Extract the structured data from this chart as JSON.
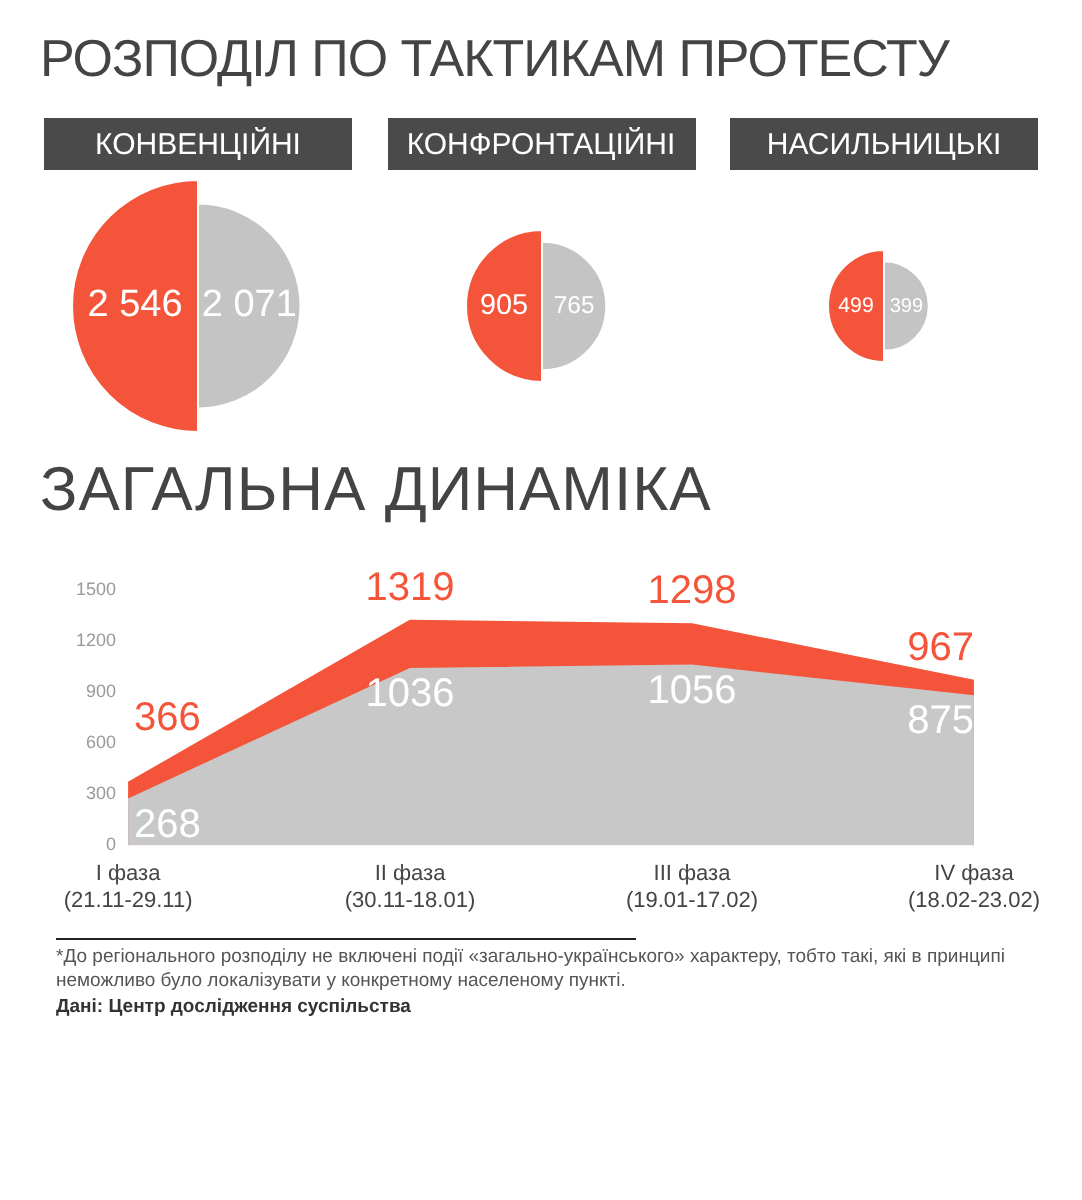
{
  "chart_data": [
    {
      "type": "other",
      "title": "РОЗПОДІЛ ПО ТАКТИКАМ ПРОТЕСТУ",
      "categories": [
        "КОНВЕНЦІЙНІ",
        "КОНФРОНТАЦІЙНІ",
        "НАСИЛЬНИЦЬКІ"
      ],
      "series": [
        {
          "color": "#f4553a",
          "values": [
            2546,
            905,
            499
          ],
          "value_labels": [
            "2 546",
            "905",
            "499"
          ]
        },
        {
          "color": "#c4c4c4",
          "values": [
            2071,
            765,
            399
          ],
          "value_labels": [
            "2 071",
            "765",
            "399"
          ]
        }
      ]
    },
    {
      "type": "area",
      "title": "ЗАГАЛЬНА ДИНАМІКА",
      "categories": [
        "I фаза\n(21.11-29.11)",
        "II фаза\n(30.11-18.01)",
        "III фаза\n(19.01-17.02)",
        "IV фаза\n(18.02-23.02)"
      ],
      "series": [
        {
          "color": "#f4553a",
          "values": [
            366,
            1319,
            1298,
            967
          ]
        },
        {
          "color": "#c8c8c8",
          "values": [
            268,
            1036,
            1056,
            875
          ]
        }
      ],
      "ylim": [
        0,
        1500
      ],
      "yticks": [
        0,
        300,
        600,
        900,
        1200,
        1500
      ],
      "grid": false,
      "legend": false,
      "data_labels": true,
      "annotations": [
        "*До регіонального розподілу не включені події «загально-українського» характеру, тобто такі, які в принципі неможливо було локалізувати у конкретному населеному пункті.",
        "Дані: Центр дослідження суспільства"
      ]
    }
  ]
}
